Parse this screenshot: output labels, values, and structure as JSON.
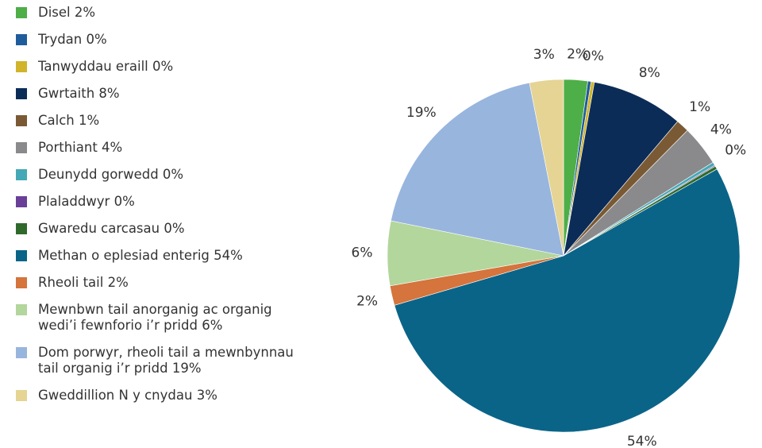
{
  "chart_data": {
    "type": "pie",
    "categories": [
      "Disel 2%",
      "Trydan 0%",
      "Tanwyddau eraill 0%",
      "Gwrtaith 8%",
      "Calch 1%",
      "Porthiant 4%",
      "Deunydd gorwedd 0%",
      "Plaladdwyr 0%",
      "Gwaredu carcasau 0%",
      "Methan o eplesiad enterig 54%",
      "Rheoli tail 2%",
      "Mewnbwn tail anorganig ac organig wedi’i fewnforio i’r pridd 6%",
      "Dom porwyr, rheoli tail a mewnbynnau tail organig i’r pridd 19%",
      "Gweddillion N y cnydau 3%"
    ],
    "values": [
      2.2,
      0.3,
      0.3,
      8.4,
      1.2,
      3.7,
      0.3,
      0.1,
      0.3,
      53.6,
      1.8,
      5.9,
      18.7,
      3.1
    ],
    "value_labels": [
      "2%",
      "0%",
      null,
      "8%",
      "1%",
      "4%",
      "0%",
      null,
      null,
      "54%",
      "2%",
      "6%",
      "19%",
      "3%"
    ],
    "colors": [
      "#4eae47",
      "#1f5c9c",
      "#d1b429",
      "#0c2c58",
      "#7a5a35",
      "#8a8a8c",
      "#45a8b6",
      "#6a3f98",
      "#2f6a2b",
      "#0a6488",
      "#d5743c",
      "#b2d69c",
      "#98b5de",
      "#e5d493"
    ],
    "legend": "left"
  }
}
